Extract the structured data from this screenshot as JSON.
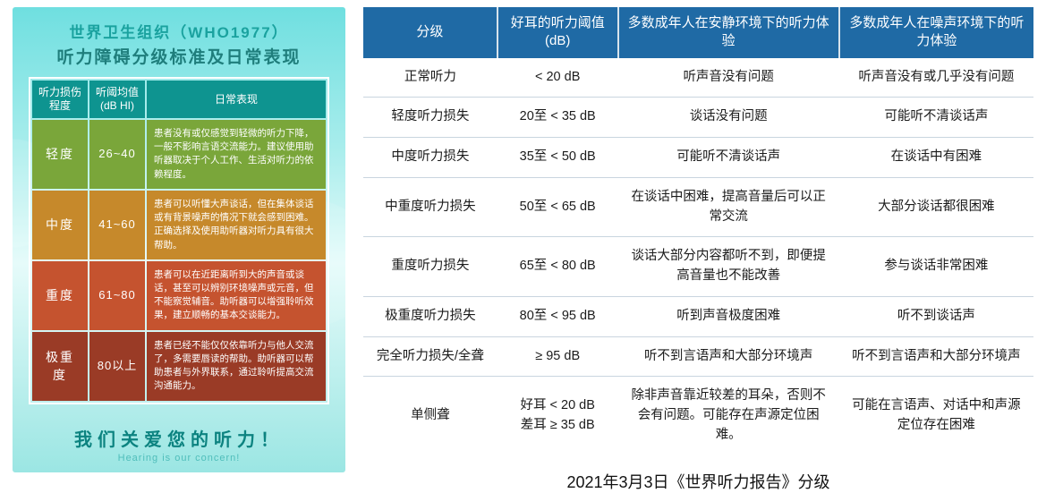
{
  "poster": {
    "title_line1": "世界卫生组织（WHO1977）",
    "title_line2": "听力障碍分级标准及日常表现",
    "headers": [
      "听力损伤\n程度",
      "听阈均值\n(dB HI)",
      "日常表现"
    ],
    "col_widths": [
      "62px",
      "62px",
      "auto"
    ],
    "rows": [
      {
        "level": "轻度",
        "db": "26~40",
        "desc": "患者没有或仅感觉到轻微的听力下降，一般不影响言语交流能力。建议使用助听器取决于个人工作、生活对听力的依赖程度。",
        "bg": "#7aa63a"
      },
      {
        "level": "中度",
        "db": "41~60",
        "desc": "患者可以听懂大声谈话，但在集体谈话或有背景噪声的情况下就会感到困难。正确选择及使用助听器对听力具有很大帮助。",
        "bg": "#c6892b"
      },
      {
        "level": "重度",
        "db": "61~80",
        "desc": "患者可以在近距离听到大的声音或谈话，甚至可以辨别环境噪声或元音，但不能察觉辅音。助听器可以增强聆听效果，建立顺畅的基本交谈能力。",
        "bg": "#c5532f"
      },
      {
        "level": "极重度",
        "db": "80以上",
        "desc": "患者已经不能仅仅依靠听力与他人交流了，多需要唇读的帮助。助听器可以帮助患者与外界联系，通过聆听提高交流沟通能力。",
        "bg": "#9a3b26"
      }
    ],
    "footer_zh": "我们关爱您的听力！",
    "footer_en": "Hearing is our concern!"
  },
  "right": {
    "headers": [
      "分级",
      "好耳的听力阈值\n(dB)",
      "多数成年人在安静环境下的听力体验",
      "多数成年人在噪声环境下的听力体验"
    ],
    "header_bg": "#1f6aa5",
    "rows": [
      {
        "name": "正常听力",
        "db": "< 20 dB",
        "quiet": "听声音没有问题",
        "noise": "听声音没有或几乎没有问题"
      },
      {
        "name": "轻度听力损失",
        "db": "20至 < 35 dB",
        "quiet": "谈话没有问题",
        "noise": "可能听不清谈话声"
      },
      {
        "name": "中度听力损失",
        "db": "35至 < 50 dB",
        "quiet": "可能听不清谈话声",
        "noise": "在谈话中有困难"
      },
      {
        "name": "中重度听力损失",
        "db": "50至 < 65 dB",
        "quiet": "在谈话中困难，提高音量后可以正常交流",
        "noise": "大部分谈话都很困难"
      },
      {
        "name": "重度听力损失",
        "db": "65至 < 80 dB",
        "quiet": "谈话大部分内容都听不到，即便提高音量也不能改善",
        "noise": "参与谈话非常困难"
      },
      {
        "name": "极重度听力损失",
        "db": "80至 < 95 dB",
        "quiet": "听到声音极度困难",
        "noise": "听不到谈话声"
      },
      {
        "name": "完全听力损失/全聋",
        "db": "≥ 95 dB",
        "quiet": "听不到言语声和大部分环境声",
        "noise": "听不到言语声和大部分环境声"
      },
      {
        "name": "单侧聋",
        "db": "好耳 < 20 dB\n差耳 ≥ 35 dB",
        "quiet": "除非声音靠近较差的耳朵，否则不会有问题。可能存在声源定位困难。",
        "noise": "可能在言语声、对话中和声源定位存在困难"
      }
    ],
    "caption": "2021年3月3日《世界听力报告》分级"
  }
}
